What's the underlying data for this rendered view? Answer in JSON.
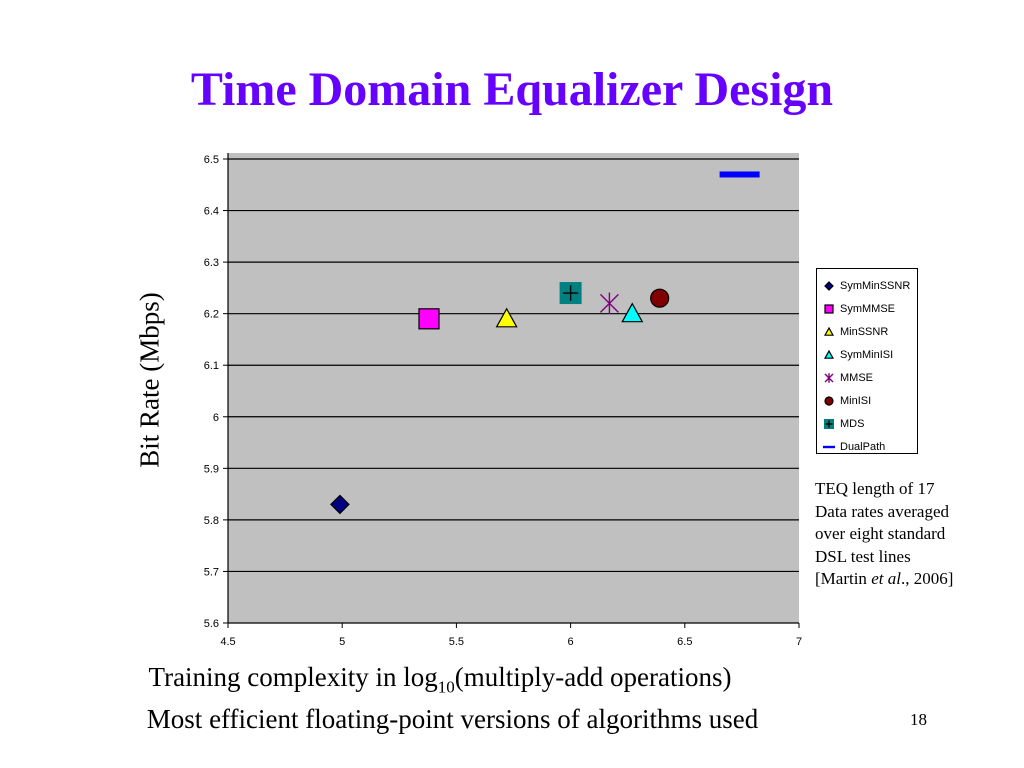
{
  "slide": {
    "title": "Time Domain Equalizer Design",
    "page_number": "18",
    "xlabel_main": "Training complexity in log",
    "xlabel_sub": "10",
    "xlabel_rest": "(multiply-add operations)",
    "footnote": "Most efficient floating-point versions of algorithms used",
    "note": {
      "line1": "TEQ length of 17",
      "line2": "Data rates averaged",
      "line3": "over eight standard",
      "line4": "DSL test lines",
      "line5_pre": "[Martin ",
      "line5_italic": "et al",
      "line5_post": "., 2006]"
    }
  },
  "chart_data": {
    "type": "scatter",
    "title": "",
    "xlabel": "Training complexity in log10(multiply-add operations)",
    "ylabel": "Bit Rate (Mbps)",
    "xlim": [
      4.5,
      7
    ],
    "ylim": [
      5.6,
      6.5
    ],
    "xticks": [
      "4.5",
      "5",
      "5.5",
      "6",
      "6.5",
      "7"
    ],
    "yticks": [
      "5.6",
      "5.7",
      "5.8",
      "5.9",
      "6",
      "6.1",
      "6.2",
      "6.3",
      "6.4",
      "6.5"
    ],
    "grid": "horizontal",
    "plot_background": "#c0c0c0",
    "legend_position": "right",
    "series": [
      {
        "name": "SymMinSSNR",
        "x": 4.99,
        "y": 5.83,
        "marker": "diamond",
        "color": "#000080"
      },
      {
        "name": "SymMMSE",
        "x": 5.38,
        "y": 6.19,
        "marker": "square",
        "color": "#ff00ff"
      },
      {
        "name": "MinSSNR",
        "x": 5.72,
        "y": 6.19,
        "marker": "triangle",
        "color": "#ffff00"
      },
      {
        "name": "SymMinISI",
        "x": 6.27,
        "y": 6.2,
        "marker": "triangle",
        "color": "#00ffff"
      },
      {
        "name": "MMSE",
        "x": 6.17,
        "y": 6.22,
        "marker": "star",
        "color": "#800080"
      },
      {
        "name": "MinISI",
        "x": 6.39,
        "y": 6.23,
        "marker": "circle",
        "color": "#800000"
      },
      {
        "name": "MDS",
        "x": 6.0,
        "y": 6.24,
        "marker": "square-plus",
        "color": "#008080"
      },
      {
        "name": "DualPath",
        "x": 6.74,
        "y": 6.47,
        "marker": "dash",
        "color": "#0000ff"
      }
    ]
  }
}
